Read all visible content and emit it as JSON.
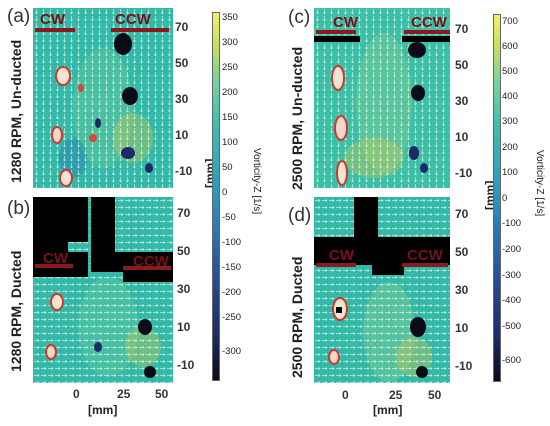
{
  "figure": {
    "panels": [
      {
        "label": "(a)",
        "row_label": "1280 RPM, Un-ducted",
        "ducted": false
      },
      {
        "label": "(b)",
        "row_label": "1280 RPM, Ducted",
        "ducted": true
      },
      {
        "label": "(c)",
        "row_label": "2500 RPM, Un-ducted",
        "ducted": false
      },
      {
        "label": "(d)",
        "row_label": "2500 RPM, Ducted",
        "ducted": true
      }
    ],
    "rotor_labels": {
      "left": "CW",
      "right": "CCW"
    },
    "y_ticks_upper": [
      "70",
      "50",
      "30",
      "10",
      "-10"
    ],
    "y_ticks_lower": [
      "70",
      "50",
      "30",
      "10",
      "-10"
    ],
    "x_ticks": [
      "0",
      "25",
      "50"
    ],
    "x_axis_title": "[mm]",
    "y_axis_title": "[mm]",
    "colorbar_left": {
      "title": "Vorticity-Z [1/s]",
      "ticks": [
        "350",
        "300",
        "250",
        "200",
        "150",
        "100",
        "50",
        "0",
        "-50",
        "-100",
        "-150",
        "-200",
        "-250",
        "-300"
      ]
    },
    "colorbar_right": {
      "title": "Vorticity-Z [1/s]",
      "ticks": [
        "700",
        "600",
        "500",
        "400",
        "300",
        "200",
        "100",
        "0",
        "-100",
        "-200",
        "-300",
        "-400",
        "-500",
        "-600"
      ]
    },
    "colors": {
      "field": "#34b9a8",
      "positive": "#e8c43a",
      "negative": "#1e3570",
      "rotor": "#8b1a1f",
      "mask": "#000000"
    }
  }
}
